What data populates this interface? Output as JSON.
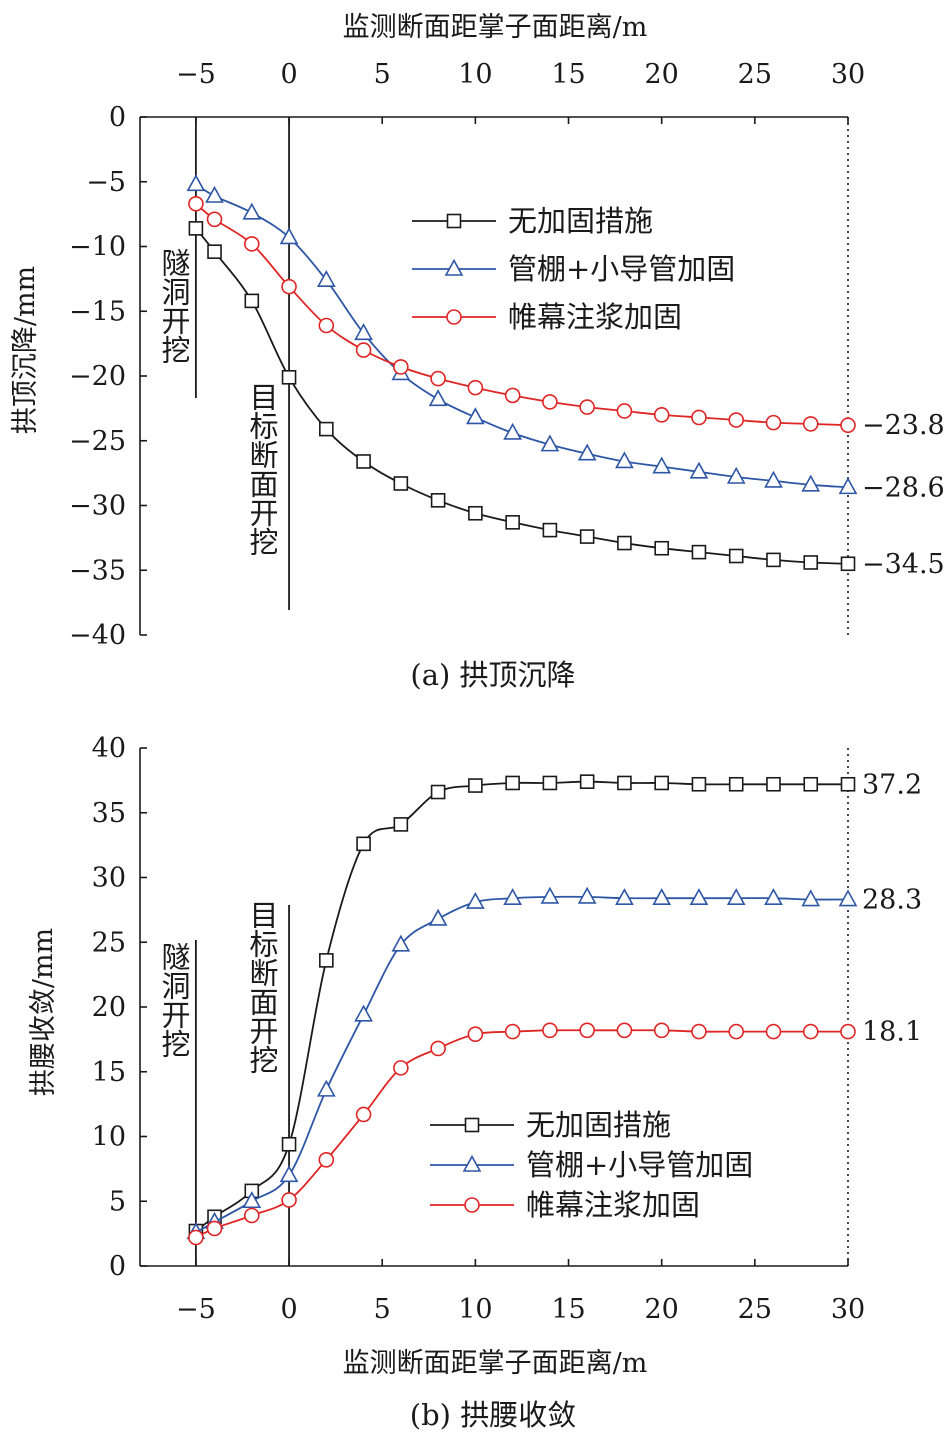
{
  "colors": {
    "series": [
      "#1a1a1a",
      "#2e56a6",
      "#e02525"
    ],
    "axis": "#1a1a1a"
  },
  "chart_data": [
    {
      "type": "line",
      "caption": "(a) 拱顶沉降",
      "xlabel": "监测断面距掌子面距离/m",
      "xlabel_position": "top",
      "ylabel": "拱顶沉降/mm",
      "x_ticks": [
        -5,
        0,
        5,
        10,
        15,
        20,
        25,
        30
      ],
      "y_ticks": [
        0,
        -5,
        -10,
        -15,
        -20,
        -25,
        -30,
        -35,
        -40
      ],
      "xlim": [
        -8,
        30
      ],
      "ylim": [
        -40,
        0
      ],
      "legend_position": "upper-right",
      "annotations": [
        {
          "text": "隧洞开挖",
          "x": -5
        },
        {
          "text": "目标断面开挖",
          "x": 0
        }
      ],
      "end_labels": [
        "-34.5",
        "-28.6",
        "-23.8"
      ],
      "x": [
        -5,
        -4,
        -2,
        0,
        2,
        4,
        6,
        8,
        10,
        12,
        14,
        16,
        18,
        20,
        22,
        24,
        26,
        28,
        30
      ],
      "series": [
        {
          "name": "无加固措施",
          "marker": "square",
          "values": [
            -8.6,
            -10.4,
            -14.2,
            -20.1,
            -24.1,
            -26.6,
            -28.3,
            -29.6,
            -30.6,
            -31.3,
            -31.9,
            -32.4,
            -32.9,
            -33.3,
            -33.6,
            -33.9,
            -34.2,
            -34.4,
            -34.5
          ]
        },
        {
          "name": "管棚+小导管加固",
          "marker": "triangle",
          "values": [
            -5.2,
            -6.1,
            -7.4,
            -9.3,
            -12.6,
            -16.7,
            -19.8,
            -21.8,
            -23.2,
            -24.4,
            -25.3,
            -26.0,
            -26.6,
            -27.0,
            -27.4,
            -27.8,
            -28.1,
            -28.4,
            -28.6
          ]
        },
        {
          "name": "帷幕注浆加固",
          "marker": "circle",
          "values": [
            -6.7,
            -7.9,
            -9.8,
            -13.1,
            -16.1,
            -18.0,
            -19.3,
            -20.2,
            -20.9,
            -21.5,
            -22.0,
            -22.4,
            -22.7,
            -23.0,
            -23.2,
            -23.4,
            -23.6,
            -23.7,
            -23.8
          ]
        }
      ]
    },
    {
      "type": "line",
      "caption": "(b) 拱腰收敛",
      "xlabel": "监测断面距掌子面距离/m",
      "xlabel_position": "bottom",
      "ylabel": "拱腰收敛/mm",
      "x_ticks": [
        -5,
        0,
        5,
        10,
        15,
        20,
        25,
        30
      ],
      "y_ticks": [
        0,
        5,
        10,
        15,
        20,
        25,
        30,
        35,
        40
      ],
      "xlim": [
        -8,
        30
      ],
      "ylim": [
        0,
        40
      ],
      "legend_position": "lower-right",
      "annotations": [
        {
          "text": "隧洞开挖",
          "x": -5
        },
        {
          "text": "目标断面开挖",
          "x": 0
        }
      ],
      "end_labels": [
        "37.2",
        "28.3",
        "18.1"
      ],
      "x": [
        -5,
        -4,
        -2,
        0,
        2,
        4,
        6,
        8,
        10,
        12,
        14,
        16,
        18,
        20,
        22,
        24,
        26,
        28,
        30
      ],
      "series": [
        {
          "name": "无加固措施",
          "marker": "square",
          "values": [
            2.7,
            3.8,
            5.8,
            9.4,
            23.6,
            32.6,
            34.1,
            36.6,
            37.1,
            37.3,
            37.3,
            37.4,
            37.3,
            37.3,
            37.2,
            37.2,
            37.2,
            37.2,
            37.2
          ]
        },
        {
          "name": "管棚+小导管加固",
          "marker": "triangle",
          "values": [
            2.6,
            3.4,
            5.0,
            7.0,
            13.6,
            19.4,
            24.8,
            26.8,
            28.1,
            28.4,
            28.5,
            28.5,
            28.4,
            28.4,
            28.4,
            28.4,
            28.4,
            28.3,
            28.3
          ]
        },
        {
          "name": "帷幕注浆加固",
          "marker": "circle",
          "values": [
            2.2,
            2.9,
            3.9,
            5.1,
            8.2,
            11.7,
            15.3,
            16.8,
            17.9,
            18.1,
            18.2,
            18.2,
            18.2,
            18.2,
            18.1,
            18.1,
            18.1,
            18.1,
            18.1
          ]
        }
      ]
    }
  ]
}
